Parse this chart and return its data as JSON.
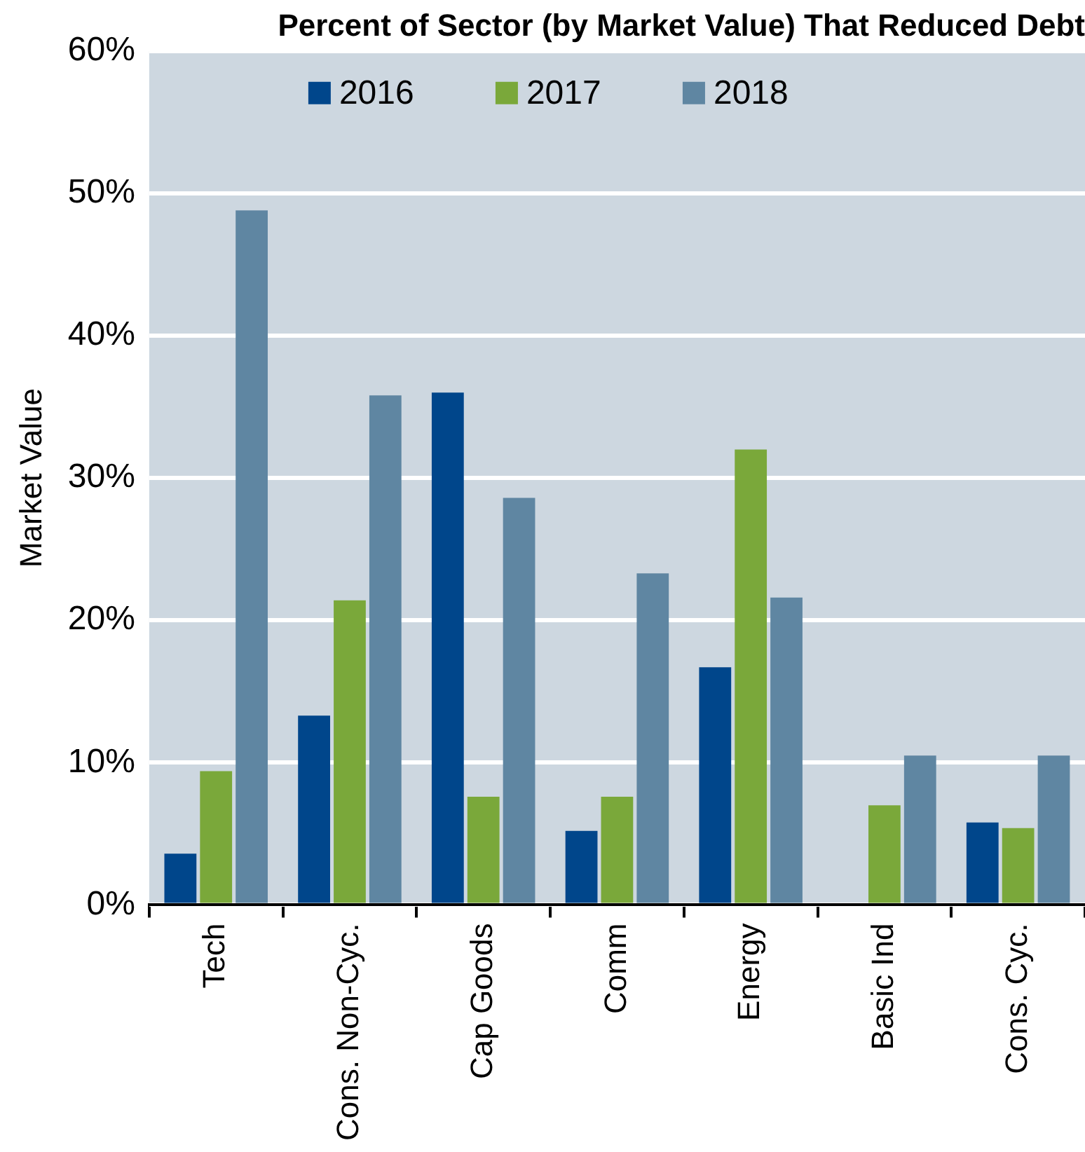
{
  "chart_data": {
    "type": "bar",
    "title": "Percent of Sector (by Market Value) That Reduced Debt",
    "ylabel": "Market Value",
    "categories": [
      "Tech",
      "Cons. Non-Cyc.",
      "Cap Goods",
      "Comm",
      "Energy",
      "Basic Ind",
      "Cons. Cyc."
    ],
    "series": [
      {
        "name": "2016",
        "color": "#00468b",
        "values": [
          3.6,
          13.3,
          36.0,
          5.2,
          16.7,
          null,
          5.8
        ]
      },
      {
        "name": "2017",
        "color": "#7aa83a",
        "values": [
          9.4,
          21.4,
          7.6,
          7.6,
          32.0,
          7.0,
          5.4
        ]
      },
      {
        "name": "2018",
        "color": "#5f86a2",
        "values": [
          48.8,
          35.8,
          28.6,
          23.3,
          21.6,
          10.5,
          10.5
        ]
      }
    ],
    "ylim": [
      0,
      60
    ],
    "yticks": [
      {
        "value": 0,
        "label": "0%"
      },
      {
        "value": 10,
        "label": "10%"
      },
      {
        "value": 20,
        "label": "20%"
      },
      {
        "value": 30,
        "label": "30%"
      },
      {
        "value": 40,
        "label": "40%"
      },
      {
        "value": 50,
        "label": "50%"
      },
      {
        "value": 60,
        "label": "60%"
      }
    ],
    "grid": "y",
    "legend": "top"
  }
}
